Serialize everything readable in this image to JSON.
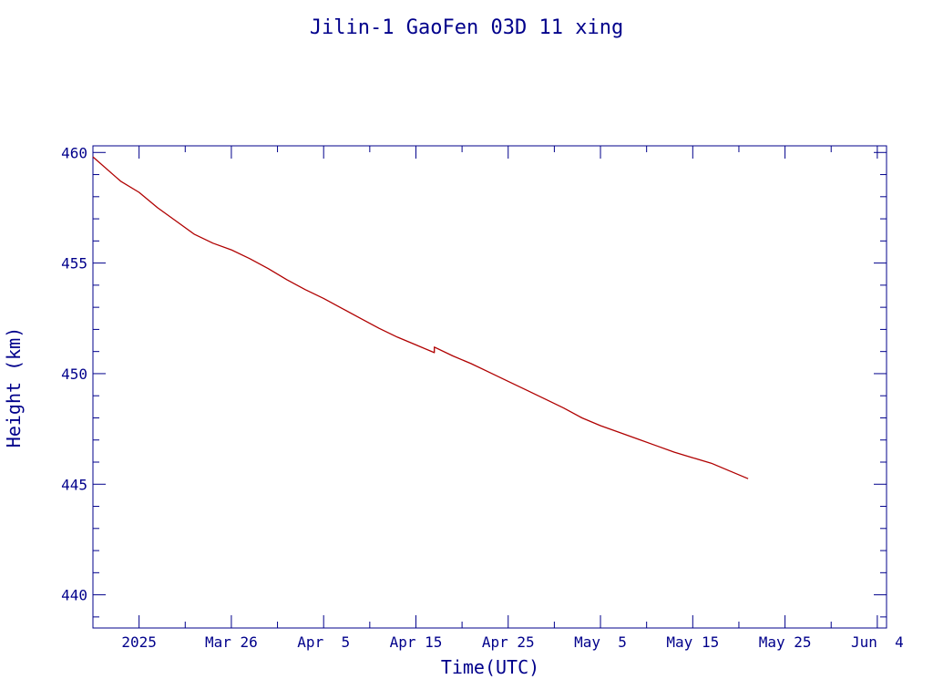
{
  "colors": {
    "axis": "#00008b",
    "text": "#00008b",
    "series": "#b00000",
    "background": "#ffffff"
  },
  "chart_data": {
    "type": "line",
    "title": "Jilin-1 GaoFen 03D 11 xing",
    "xlabel": "Time(UTC)",
    "ylabel": "Height (km)",
    "xlim": [
      "2025-03-11",
      "2025-06-05"
    ],
    "ylim": [
      438.5,
      460.3
    ],
    "y_ticks": [
      440,
      445,
      450,
      455,
      460
    ],
    "x_ticks": [
      {
        "date": "2025-03-16",
        "label": "2025"
      },
      {
        "date": "2025-03-26",
        "label": "Mar 26"
      },
      {
        "date": "2025-04-05",
        "label": "Apr  5"
      },
      {
        "date": "2025-04-15",
        "label": "Apr 15"
      },
      {
        "date": "2025-04-25",
        "label": "Apr 25"
      },
      {
        "date": "2025-05-05",
        "label": "May  5"
      },
      {
        "date": "2025-05-15",
        "label": "May 15"
      },
      {
        "date": "2025-05-25",
        "label": "May 25"
      },
      {
        "date": "2025-06-04",
        "label": "Jun  4"
      }
    ],
    "grid": false,
    "series": [
      {
        "x": [
          "2025-03-11",
          "2025-03-14",
          "2025-03-16",
          "2025-03-18",
          "2025-03-20",
          "2025-03-22",
          "2025-03-24",
          "2025-03-26",
          "2025-03-28",
          "2025-03-30",
          "2025-04-01",
          "2025-04-03",
          "2025-04-05",
          "2025-04-07",
          "2025-04-09",
          "2025-04-11",
          "2025-04-13",
          "2025-04-15",
          "2025-04-17",
          "2025-04-17",
          "2025-04-19",
          "2025-04-21",
          "2025-04-23",
          "2025-04-25",
          "2025-04-27",
          "2025-04-29",
          "2025-05-01",
          "2025-05-03",
          "2025-05-05",
          "2025-05-07",
          "2025-05-09",
          "2025-05-11",
          "2025-05-13",
          "2025-05-15",
          "2025-05-17",
          "2025-05-19",
          "2025-05-21"
        ],
        "y": [
          459.8,
          458.7,
          458.2,
          457.5,
          456.9,
          456.3,
          455.9,
          455.6,
          455.2,
          454.75,
          454.25,
          453.8,
          453.4,
          452.95,
          452.5,
          452.05,
          451.65,
          451.3,
          450.95,
          451.2,
          450.8,
          450.45,
          450.05,
          449.65,
          449.25,
          448.85,
          448.45,
          448.0,
          447.65,
          447.35,
          447.05,
          446.75,
          446.45,
          446.2,
          445.95,
          445.6,
          445.25
        ]
      }
    ]
  }
}
